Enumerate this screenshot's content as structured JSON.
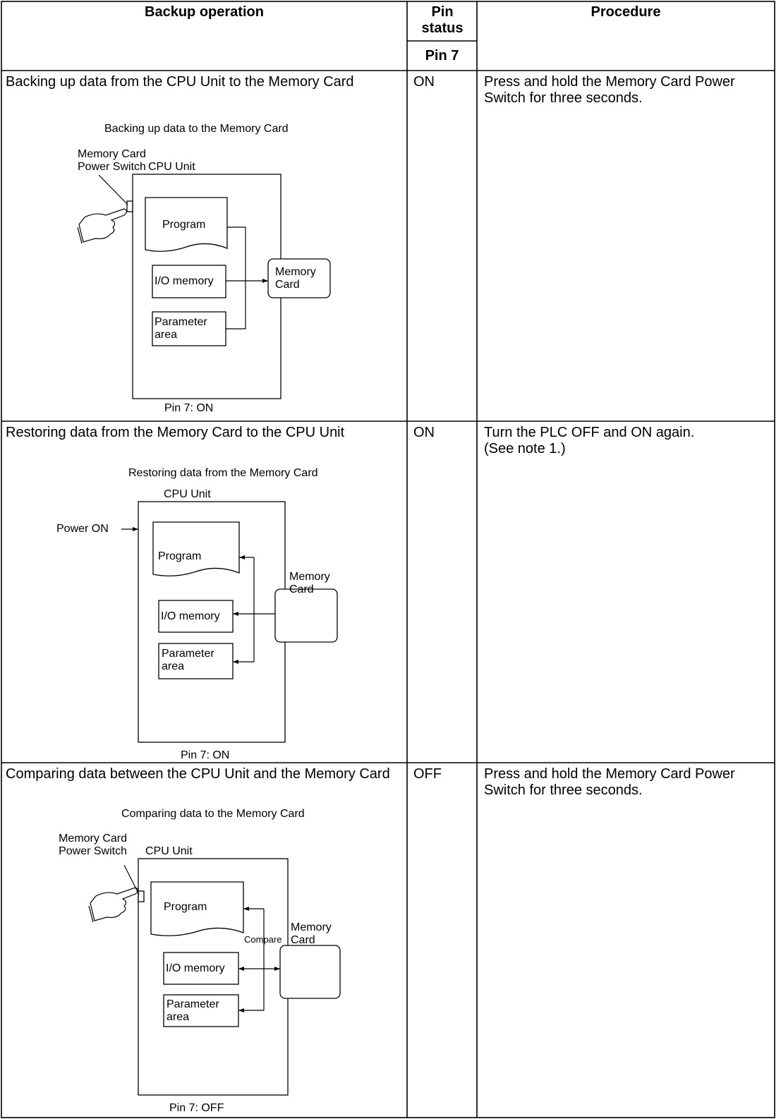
{
  "header": {
    "operation": "Backup operation",
    "pin_status": "Pin status",
    "pin": "Pin 7",
    "procedure": "Procedure"
  },
  "rows": [
    {
      "operation": "Backing up data from the CPU Unit to the Memory Card",
      "pin_7": "ON",
      "procedure": "Press and hold the Memory Card Power Switch for three seconds.",
      "diagram": {
        "title": "Backing up data to the Memory Card",
        "switch_label": "Memory Card Power Switch",
        "cpu_label": "CPU Unit",
        "program": "Program",
        "io_memory": "I/O memory",
        "parameter_area": "Parameter area",
        "memory_card": "Memory Card",
        "caption": "Pin 7: ON"
      }
    },
    {
      "operation": "Restoring data from the Memory Card to the CPU Unit",
      "pin_7": "ON",
      "procedure": "Turn the PLC OFF and ON again. (See note 1.)",
      "diagram": {
        "title": "Restoring data from the Memory Card",
        "cpu_label": "CPU Unit",
        "power_label": "Power ON",
        "program": "Program",
        "io_memory": "I/O memory",
        "parameter_area": "Parameter area",
        "memory_card": "Memory Card",
        "caption": "Pin 7: ON"
      }
    },
    {
      "operation": "Comparing data between the CPU Unit and the Memory Card",
      "pin_7": "OFF",
      "procedure": "Press and hold the Memory Card Power Switch for three seconds.",
      "diagram": {
        "title": "Comparing data to the Memory Card",
        "switch_label": "Memory Card Power Switch",
        "cpu_label": "CPU Unit",
        "program": "Program",
        "compare_label": "Compare",
        "io_memory": "I/O memory",
        "parameter_area": "Parameter area",
        "memory_card": "Memory Card",
        "caption": "Pin 7: OFF"
      }
    }
  ]
}
